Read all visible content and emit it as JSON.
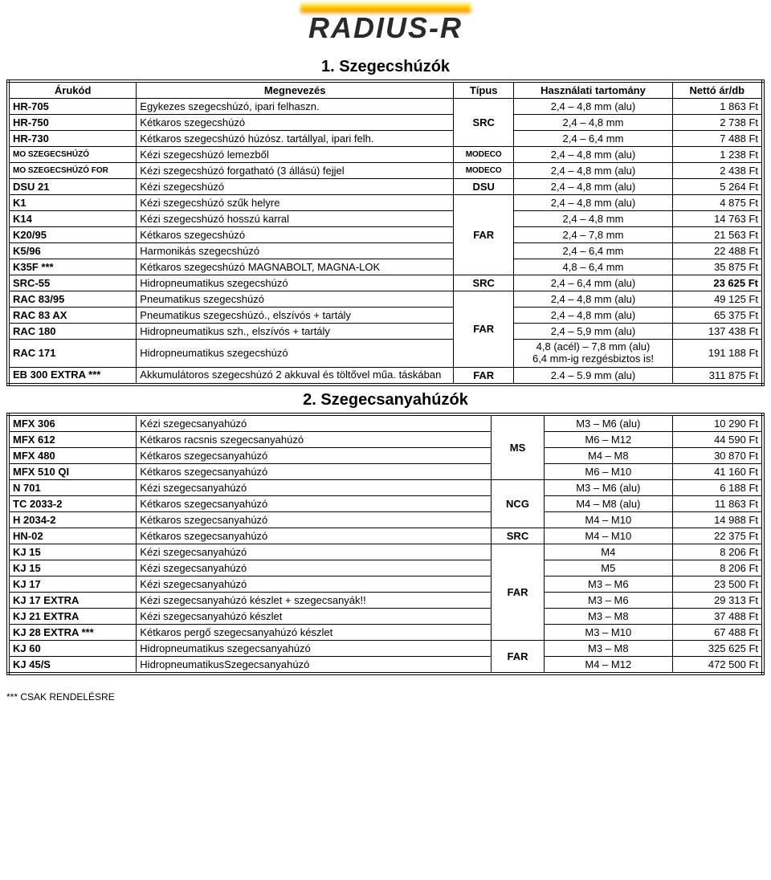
{
  "logo_text": "RADIUS-R",
  "section1": {
    "title": "1. Szegecshúzók",
    "columns": [
      "Árukód",
      "Megnevezés",
      "Típus",
      "Használati tartomány",
      "Nettó ár/db"
    ]
  },
  "section2": {
    "title": "2. Szegecsanyahúzók"
  },
  "footnote": "*** CSAK RENDELÉSRE",
  "rows1": [
    {
      "code": "HR-705",
      "name": "Egykezes szegecshúzó, ipari felhaszn.",
      "type": "",
      "range": "2,4 – 4,8 mm (alu)",
      "price": "1 863 Ft",
      "ts": 3
    },
    {
      "code": "HR-750",
      "name": "Kétkaros szegecshúzó",
      "type": "SRC",
      "range": "2,4 – 4,8 mm",
      "price": "2 738 Ft"
    },
    {
      "code": "HR-730",
      "name": "Kétkaros szegecshúzó húzósz. tartállyal, ipari felh.",
      "type": "",
      "range": "2,4 – 6,4 mm",
      "price": "7 488 Ft"
    },
    {
      "code": "MO SZEGECSHÚZÓ",
      "name": "Kézi szegecshúzó lemezből",
      "type": "MODECO",
      "tsmall": true,
      "range": "2,4 – 4,8 mm (alu)",
      "price": "1 238 Ft",
      "csmall": true
    },
    {
      "code": "MO SZEGECSHÚZÓ FOR",
      "name": "Kézi szegecshúzó forgatható (3 állású) fejjel",
      "type": "MODECO",
      "tsmall": true,
      "range": "2,4 – 4,8 mm (alu)",
      "price": "2 438 Ft",
      "csmall": true
    },
    {
      "code": "DSU 21",
      "name": "Kézi szegecshúzó",
      "type": "DSU",
      "range": "2,4 – 4,8 mm (alu)",
      "price": "5 264 Ft"
    },
    {
      "code": "K1",
      "name": "Kézi szegecshúzó szűk helyre",
      "type": "",
      "range": "2,4 – 4,8 mm (alu)",
      "price": "4 875 Ft",
      "ts": 5
    },
    {
      "code": "K14",
      "name": "Kézi szegecshúzó hosszú karral",
      "type": "FAR",
      "range": "2,4 – 4,8 mm",
      "price": "14 763 Ft"
    },
    {
      "code": "K20/95",
      "name": "Kétkaros szegecshúzó",
      "type": "",
      "range": "2,4 – 7,8 mm",
      "price": "21 563 Ft"
    },
    {
      "code": "K5/96",
      "name": "Harmonikás szegecshúzó",
      "type": "",
      "range": "2,4 – 6,4 mm",
      "price": "22 488 Ft"
    },
    {
      "code": "K35F ***",
      "name": "Kétkaros szegecshúzó MAGNABOLT, MAGNA-LOK",
      "type": "",
      "range": "4,8 – 6,4 mm",
      "price": "35 875 Ft"
    },
    {
      "code": "SRC-55",
      "name": "Hidropneumatikus szegecshúzó",
      "type": "SRC",
      "range": "2,4 – 6,4 mm (alu)",
      "price": "23 625 Ft",
      "pbold": true
    },
    {
      "code": "RAC 83/95",
      "name": "Pneumatikus szegecshúzó",
      "type": "",
      "range": "2,4 – 4,8 mm (alu)",
      "price": "49 125 Ft",
      "ts": 4
    },
    {
      "code": "RAC 83 AX",
      "name": "Pneumatikus szegecshúzó., elszívós + tartály",
      "type": "FAR",
      "range": "2,4 – 4,8 mm (alu)",
      "price": "65 375 Ft"
    },
    {
      "code": "RAC 180",
      "name": "Hidropneumatikus szh., elszívós + tartály",
      "type": "",
      "range": "2,4 – 5,9 mm (alu)",
      "price": "137 438 Ft"
    },
    {
      "code": "RAC 171",
      "name": "Hidropneumatikus szegecshúzó",
      "type": "",
      "range": "4,8 (acél) – 7,8 mm (alu)\n6,4 mm-ig rezgésbiztos is!",
      "price": "191 188 Ft",
      "rwrap": true
    },
    {
      "code": "EB 300 EXTRA ***",
      "name": "Akkumulátoros szegecshúzó 2 akkuval és töltővel műa. táskában",
      "type": "FAR",
      "range": "2.4 – 5.9 mm (alu)",
      "price": "311 875 Ft",
      "nwrap": true,
      "cwrap": true
    }
  ],
  "rows2": [
    {
      "code": "MFX 306",
      "name": "Kézi szegecsanyahúzó",
      "type": "",
      "range": "M3 – M6 (alu)",
      "price": "10 290 Ft",
      "ts": 4
    },
    {
      "code": "MFX 612",
      "name": "Kétkaros racsnis szegecsanyahúzó",
      "type": "MS",
      "range": "M6 – M12",
      "price": "44 590 Ft"
    },
    {
      "code": "MFX 480",
      "name": "Kétkaros szegecsanyahúzó",
      "type": "",
      "range": "M4 – M8",
      "price": "30 870 Ft"
    },
    {
      "code": "MFX 510 QI",
      "name": "Kétkaros szegecsanyahúzó",
      "type": "",
      "range": "M6 – M10",
      "price": "41 160 Ft"
    },
    {
      "code": "N 701",
      "name": "Kézi szegecsanyahúzó",
      "type": "",
      "range": "M3 – M6 (alu)",
      "price": "6 188 Ft",
      "ts": 3
    },
    {
      "code": "TC 2033-2",
      "name": "Kétkaros szegecsanyahúzó",
      "type": "NCG",
      "range": "M4 – M8 (alu)",
      "price": "11 863 Ft"
    },
    {
      "code": "H 2034-2",
      "name": "Kétkaros szegecsanyahúzó",
      "type": "",
      "range": "M4 – M10",
      "price": "14 988 Ft"
    },
    {
      "code": "HN-02",
      "name": "Kétkaros szegecsanyahúzó",
      "type": "SRC",
      "range": "M4 – M10",
      "price": "22 375 Ft"
    },
    {
      "code": "KJ 15",
      "name": "Kézi szegecsanyahúzó",
      "type": "",
      "range": "M4",
      "price": "8 206 Ft",
      "ts": 6
    },
    {
      "code": "KJ 15",
      "name": "Kézi szegecsanyahúzó",
      "type": "FAR",
      "range": "M5",
      "price": "8 206 Ft"
    },
    {
      "code": "KJ 17",
      "name": "Kézi szegecsanyahúzó",
      "type": "",
      "range": "M3 – M6",
      "price": "23 500 Ft"
    },
    {
      "code": "KJ 17 EXTRA",
      "name": "Kézi szegecsanyahúzó készlet + szegecsanyák!!",
      "type": "",
      "range": "M3 – M6",
      "price": "29 313 Ft"
    },
    {
      "code": "KJ 21 EXTRA",
      "name": "Kézi szegecsanyahúzó készlet",
      "type": "",
      "range": "M3 – M8",
      "price": "37 488 Ft"
    },
    {
      "code": "KJ 28 EXTRA ***",
      "name": "Kétkaros pergő szegecsanyahúzó készlet",
      "type": "",
      "range": "M3 – M10",
      "price": "67 488 Ft"
    },
    {
      "code": "KJ 60",
      "name": "Hidropneumatikus szegecsanyahúzó",
      "type": "",
      "range": "M3 – M8",
      "price": "325 625 Ft",
      "ts": 2
    },
    {
      "code": "KJ 45/S",
      "name": "HidropneumatikusSzegecsanyahúzó",
      "type": "FAR",
      "range": "M4 – M12",
      "price": "472 500 Ft"
    }
  ]
}
